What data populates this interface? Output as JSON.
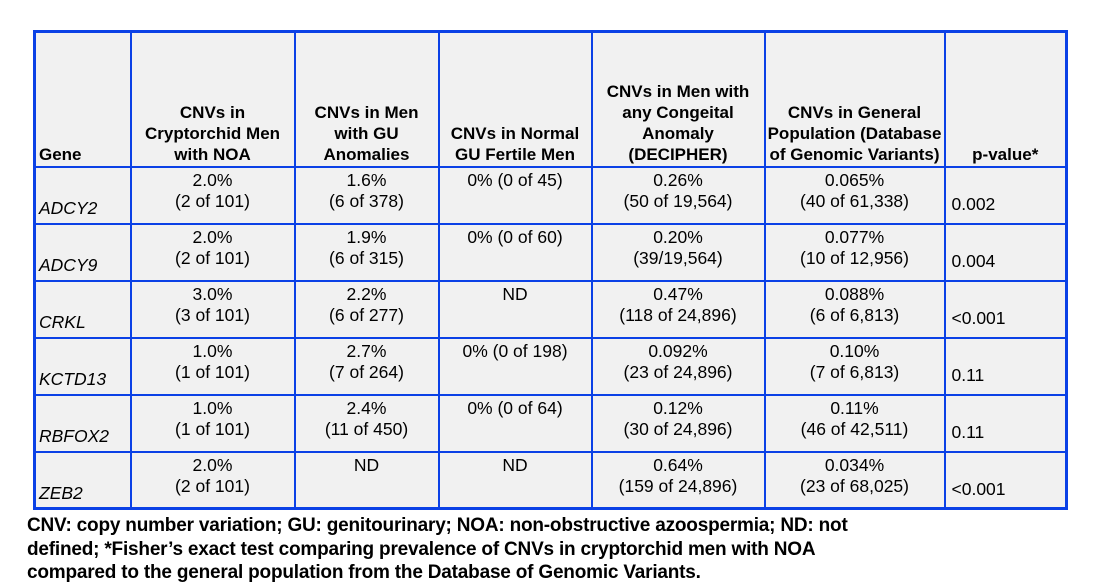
{
  "colors": {
    "border_blue": "#0B41E6",
    "cell_background": "#F1F1F1",
    "text": "#000000",
    "page_background": "#FFFFFF"
  },
  "table": {
    "headers": [
      "Gene",
      "CNVs in Cryptorchid Men with NOA",
      "CNVs in Men with GU Anomalies",
      "CNVs in Normal GU Fertile Men",
      "CNVs in Men with any Congeital Anomaly (DECIPHER)",
      "CNVs in General Population (Database of Genomic Variants)",
      "p-value*"
    ],
    "rows": [
      {
        "gene": "ADCY2",
        "cryptorchid": {
          "pct": "2.0%",
          "n": "(2 of 101)"
        },
        "gu_anomalies": {
          "pct": "1.6%",
          "n": "(6 of 378)"
        },
        "fertile": {
          "pct": "0% (0 of 45)",
          "n": ""
        },
        "decipher": {
          "pct": "0.26%",
          "n": "(50 of 19,564)"
        },
        "dgv": {
          "pct": "0.065%",
          "n": "(40 of 61,338)"
        },
        "p_value": "0.002"
      },
      {
        "gene": "ADCY9",
        "cryptorchid": {
          "pct": "2.0%",
          "n": "(2 of 101)"
        },
        "gu_anomalies": {
          "pct": "1.9%",
          "n": "(6 of 315)"
        },
        "fertile": {
          "pct": "0% (0 of 60)",
          "n": ""
        },
        "decipher": {
          "pct": "0.20%",
          "n": "(39/19,564)"
        },
        "dgv": {
          "pct": "0.077%",
          "n": "(10 of 12,956)"
        },
        "p_value": "0.004"
      },
      {
        "gene": "CRKL",
        "cryptorchid": {
          "pct": "3.0%",
          "n": "(3 of 101)"
        },
        "gu_anomalies": {
          "pct": "2.2%",
          "n": "(6 of 277)"
        },
        "fertile": {
          "pct": "ND",
          "n": ""
        },
        "decipher": {
          "pct": "0.47%",
          "n": "(118 of 24,896)"
        },
        "dgv": {
          "pct": "0.088%",
          "n": "(6 of 6,813)"
        },
        "p_value": "<0.001"
      },
      {
        "gene": "KCTD13",
        "cryptorchid": {
          "pct": "1.0%",
          "n": "(1 of 101)"
        },
        "gu_anomalies": {
          "pct": "2.7%",
          "n": "(7 of 264)"
        },
        "fertile": {
          "pct": "0% (0 of 198)",
          "n": ""
        },
        "decipher": {
          "pct": "0.092%",
          "n": "(23 of 24,896)"
        },
        "dgv": {
          "pct": "0.10%",
          "n": "(7 of 6,813)"
        },
        "p_value": "0.11"
      },
      {
        "gene": "RBFOX2",
        "cryptorchid": {
          "pct": "1.0%",
          "n": "(1 of 101)"
        },
        "gu_anomalies": {
          "pct": "2.4%",
          "n": "(11 of 450)"
        },
        "fertile": {
          "pct": "0% (0 of 64)",
          "n": ""
        },
        "decipher": {
          "pct": "0.12%",
          "n": "(30 of 24,896)"
        },
        "dgv": {
          "pct": "0.11%",
          "n": "(46 of 42,511)"
        },
        "p_value": "0.11"
      },
      {
        "gene": "ZEB2",
        "cryptorchid": {
          "pct": "2.0%",
          "n": "(2 of 101)"
        },
        "gu_anomalies": {
          "pct": "ND",
          "n": ""
        },
        "fertile": {
          "pct": "ND",
          "n": ""
        },
        "decipher": {
          "pct": "0.64%",
          "n": "(159 of 24,896)"
        },
        "dgv": {
          "pct": "0.034%",
          "n": "(23 of 68,025)"
        },
        "p_value": "<0.001"
      }
    ]
  },
  "caption_lines": [
    "CNV: copy number variation; GU: genitourinary; NOA: non-obstructive azoospermia; ND: not",
    "defined; *Fisher’s exact test comparing prevalence of CNVs in cryptorchid men with NOA",
    "compared to the general population from the Database of Genomic Variants."
  ]
}
